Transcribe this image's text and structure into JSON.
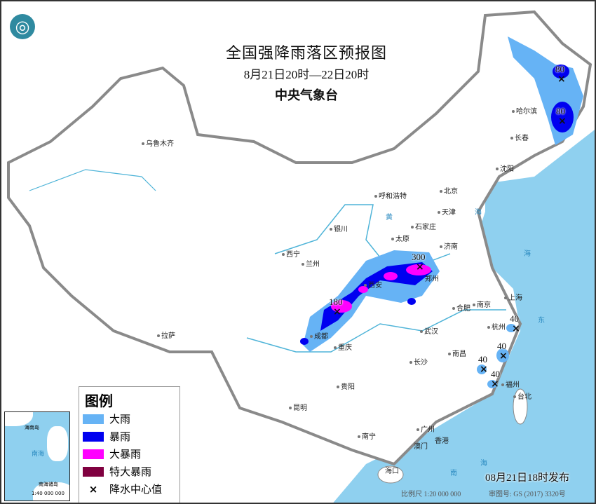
{
  "header": {
    "title": "全国强降雨落区预报图",
    "period": "8月21日20时—22日20时",
    "issuer": "中央气象台",
    "logo_icon": "cma-logo-icon"
  },
  "legend": {
    "title": "图例",
    "items": [
      {
        "label": "大雨",
        "color": "#66b3f5"
      },
      {
        "label": "暴雨",
        "color": "#0000f0"
      },
      {
        "label": "大暴雨",
        "color": "#ff00ff"
      },
      {
        "label": "特大暴雨",
        "color": "#800040"
      },
      {
        "label": "降水中心值",
        "symbol": "×"
      }
    ]
  },
  "precip_centers": [
    {
      "value": "300",
      "near": "郑州"
    },
    {
      "value": "180",
      "near": "成都"
    },
    {
      "value": "80",
      "near": "黑龙江东北部"
    },
    {
      "value": "80",
      "near": "黑龙江东部"
    },
    {
      "value": "40",
      "near": "浙江"
    },
    {
      "value": "40",
      "near": "浙江南部"
    },
    {
      "value": "40",
      "near": "福建北部"
    },
    {
      "value": "40",
      "near": "福州"
    }
  ],
  "cities": [
    "乌鲁木齐",
    "哈尔滨",
    "长春",
    "沈阳",
    "北京",
    "天津",
    "呼和浩特",
    "石家庄",
    "太原",
    "济南",
    "银川",
    "西宁",
    "兰州",
    "西安",
    "郑州",
    "成都",
    "重庆",
    "武汉",
    "合肥",
    "南京",
    "上海",
    "杭州",
    "南昌",
    "长沙",
    "福州",
    "台北",
    "贵阳",
    "昆明",
    "拉萨",
    "南宁",
    "广州",
    "香港",
    "澳门",
    "海口"
  ],
  "seas": [
    "海",
    "黄",
    "东",
    "海",
    "南",
    "海"
  ],
  "inset": {
    "labels": [
      "海南岛",
      "南海",
      "南海诸岛"
    ],
    "scale": "1:40 000 000"
  },
  "footer": {
    "issued": "08月21日18时发布",
    "scale": "比例尺 1:20 000 000",
    "approval": "审图号: GS (2017) 3320号"
  }
}
